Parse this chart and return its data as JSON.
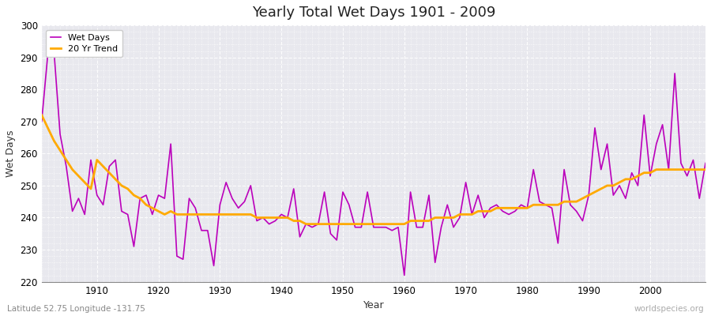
{
  "title": "Yearly Total Wet Days 1901 - 2009",
  "xlabel": "Year",
  "ylabel": "Wet Days",
  "subtitle": "Latitude 52.75 Longitude -131.75",
  "watermark": "worldspecies.org",
  "ylim": [
    220,
    300
  ],
  "xlim": [
    1901,
    2009
  ],
  "yticks": [
    220,
    230,
    240,
    250,
    260,
    270,
    280,
    290,
    300
  ],
  "xticks": [
    1910,
    1920,
    1930,
    1940,
    1950,
    1960,
    1970,
    1980,
    1990,
    2000
  ],
  "wet_days_color": "#bb00bb",
  "trend_color": "#ffaa00",
  "bg_color": "#e8e8ee",
  "grid_color": "#ffffff",
  "legend_labels": [
    "Wet Days",
    "20 Yr Trend"
  ],
  "years": [
    1901,
    1902,
    1903,
    1904,
    1905,
    1906,
    1907,
    1908,
    1909,
    1910,
    1911,
    1912,
    1913,
    1914,
    1915,
    1916,
    1917,
    1918,
    1919,
    1920,
    1921,
    1922,
    1923,
    1924,
    1925,
    1926,
    1927,
    1928,
    1929,
    1930,
    1931,
    1932,
    1933,
    1934,
    1935,
    1936,
    1937,
    1938,
    1939,
    1940,
    1941,
    1942,
    1943,
    1944,
    1945,
    1946,
    1947,
    1948,
    1949,
    1950,
    1951,
    1952,
    1953,
    1954,
    1955,
    1956,
    1957,
    1958,
    1959,
    1960,
    1961,
    1962,
    1963,
    1964,
    1965,
    1966,
    1967,
    1968,
    1969,
    1970,
    1971,
    1972,
    1973,
    1974,
    1975,
    1976,
    1977,
    1978,
    1979,
    1980,
    1981,
    1982,
    1983,
    1984,
    1985,
    1986,
    1987,
    1988,
    1989,
    1990,
    1991,
    1992,
    1993,
    1994,
    1995,
    1996,
    1997,
    1998,
    1999,
    2000,
    2001,
    2002,
    2003,
    2004,
    2005,
    2006,
    2007,
    2008,
    2009
  ],
  "wet_days": [
    270,
    291,
    292,
    266,
    256,
    242,
    246,
    241,
    258,
    247,
    244,
    256,
    258,
    242,
    241,
    231,
    246,
    247,
    241,
    247,
    246,
    263,
    228,
    227,
    246,
    243,
    236,
    236,
    225,
    244,
    251,
    246,
    243,
    245,
    250,
    239,
    240,
    238,
    239,
    241,
    240,
    249,
    234,
    238,
    237,
    238,
    248,
    235,
    233,
    248,
    244,
    237,
    237,
    248,
    237,
    237,
    237,
    236,
    237,
    222,
    248,
    237,
    237,
    247,
    226,
    237,
    244,
    237,
    240,
    251,
    241,
    247,
    240,
    243,
    244,
    242,
    241,
    242,
    244,
    243,
    255,
    245,
    244,
    243,
    232,
    255,
    244,
    242,
    239,
    247,
    268,
    255,
    263,
    247,
    250,
    246,
    254,
    250,
    272,
    253,
    263,
    269,
    255,
    285,
    257,
    253,
    258,
    246,
    257
  ],
  "trend_years": [
    1901,
    1902,
    1903,
    1904,
    1905,
    1906,
    1907,
    1908,
    1909,
    1910,
    1911,
    1912,
    1913,
    1914,
    1915,
    1916,
    1917,
    1918,
    1919,
    1920,
    1921,
    1922,
    1923,
    1924,
    1925,
    1926,
    1927,
    1928,
    1929,
    1930,
    1931,
    1932,
    1933,
    1934,
    1935,
    1936,
    1937,
    1938,
    1939,
    1940,
    1941,
    1942,
    1943,
    1944,
    1945,
    1946,
    1947,
    1948,
    1949,
    1950,
    1951,
    1952,
    1953,
    1954,
    1955,
    1956,
    1957,
    1958,
    1959,
    1960,
    1961,
    1962,
    1963,
    1964,
    1965,
    1966,
    1967,
    1968,
    1969,
    1970,
    1971,
    1972,
    1973,
    1974,
    1975,
    1976,
    1977,
    1978,
    1979,
    1980,
    1981,
    1982,
    1983,
    1984,
    1985,
    1986,
    1987,
    1988,
    1989,
    1990,
    1991,
    1992,
    1993,
    1994,
    1995,
    1996,
    1997,
    1998,
    1999,
    2000,
    2001,
    2002,
    2003,
    2004,
    2005,
    2006,
    2007,
    2008,
    2009
  ],
  "trend_values": [
    272,
    268,
    264,
    261,
    258,
    255,
    253,
    251,
    249,
    258,
    256,
    254,
    252,
    250,
    249,
    247,
    246,
    244,
    243,
    242,
    241,
    242,
    241,
    241,
    241,
    241,
    241,
    241,
    241,
    241,
    241,
    241,
    241,
    241,
    241,
    240,
    240,
    240,
    240,
    240,
    240,
    239,
    239,
    238,
    238,
    238,
    238,
    238,
    238,
    238,
    238,
    238,
    238,
    238,
    238,
    238,
    238,
    238,
    238,
    238,
    239,
    239,
    239,
    239,
    240,
    240,
    240,
    240,
    241,
    241,
    241,
    242,
    242,
    242,
    243,
    243,
    243,
    243,
    243,
    243,
    244,
    244,
    244,
    244,
    244,
    245,
    245,
    245,
    246,
    247,
    248,
    249,
    250,
    250,
    251,
    252,
    252,
    253,
    254,
    254,
    255,
    255,
    255,
    255,
    255,
    255,
    255,
    255,
    255
  ]
}
